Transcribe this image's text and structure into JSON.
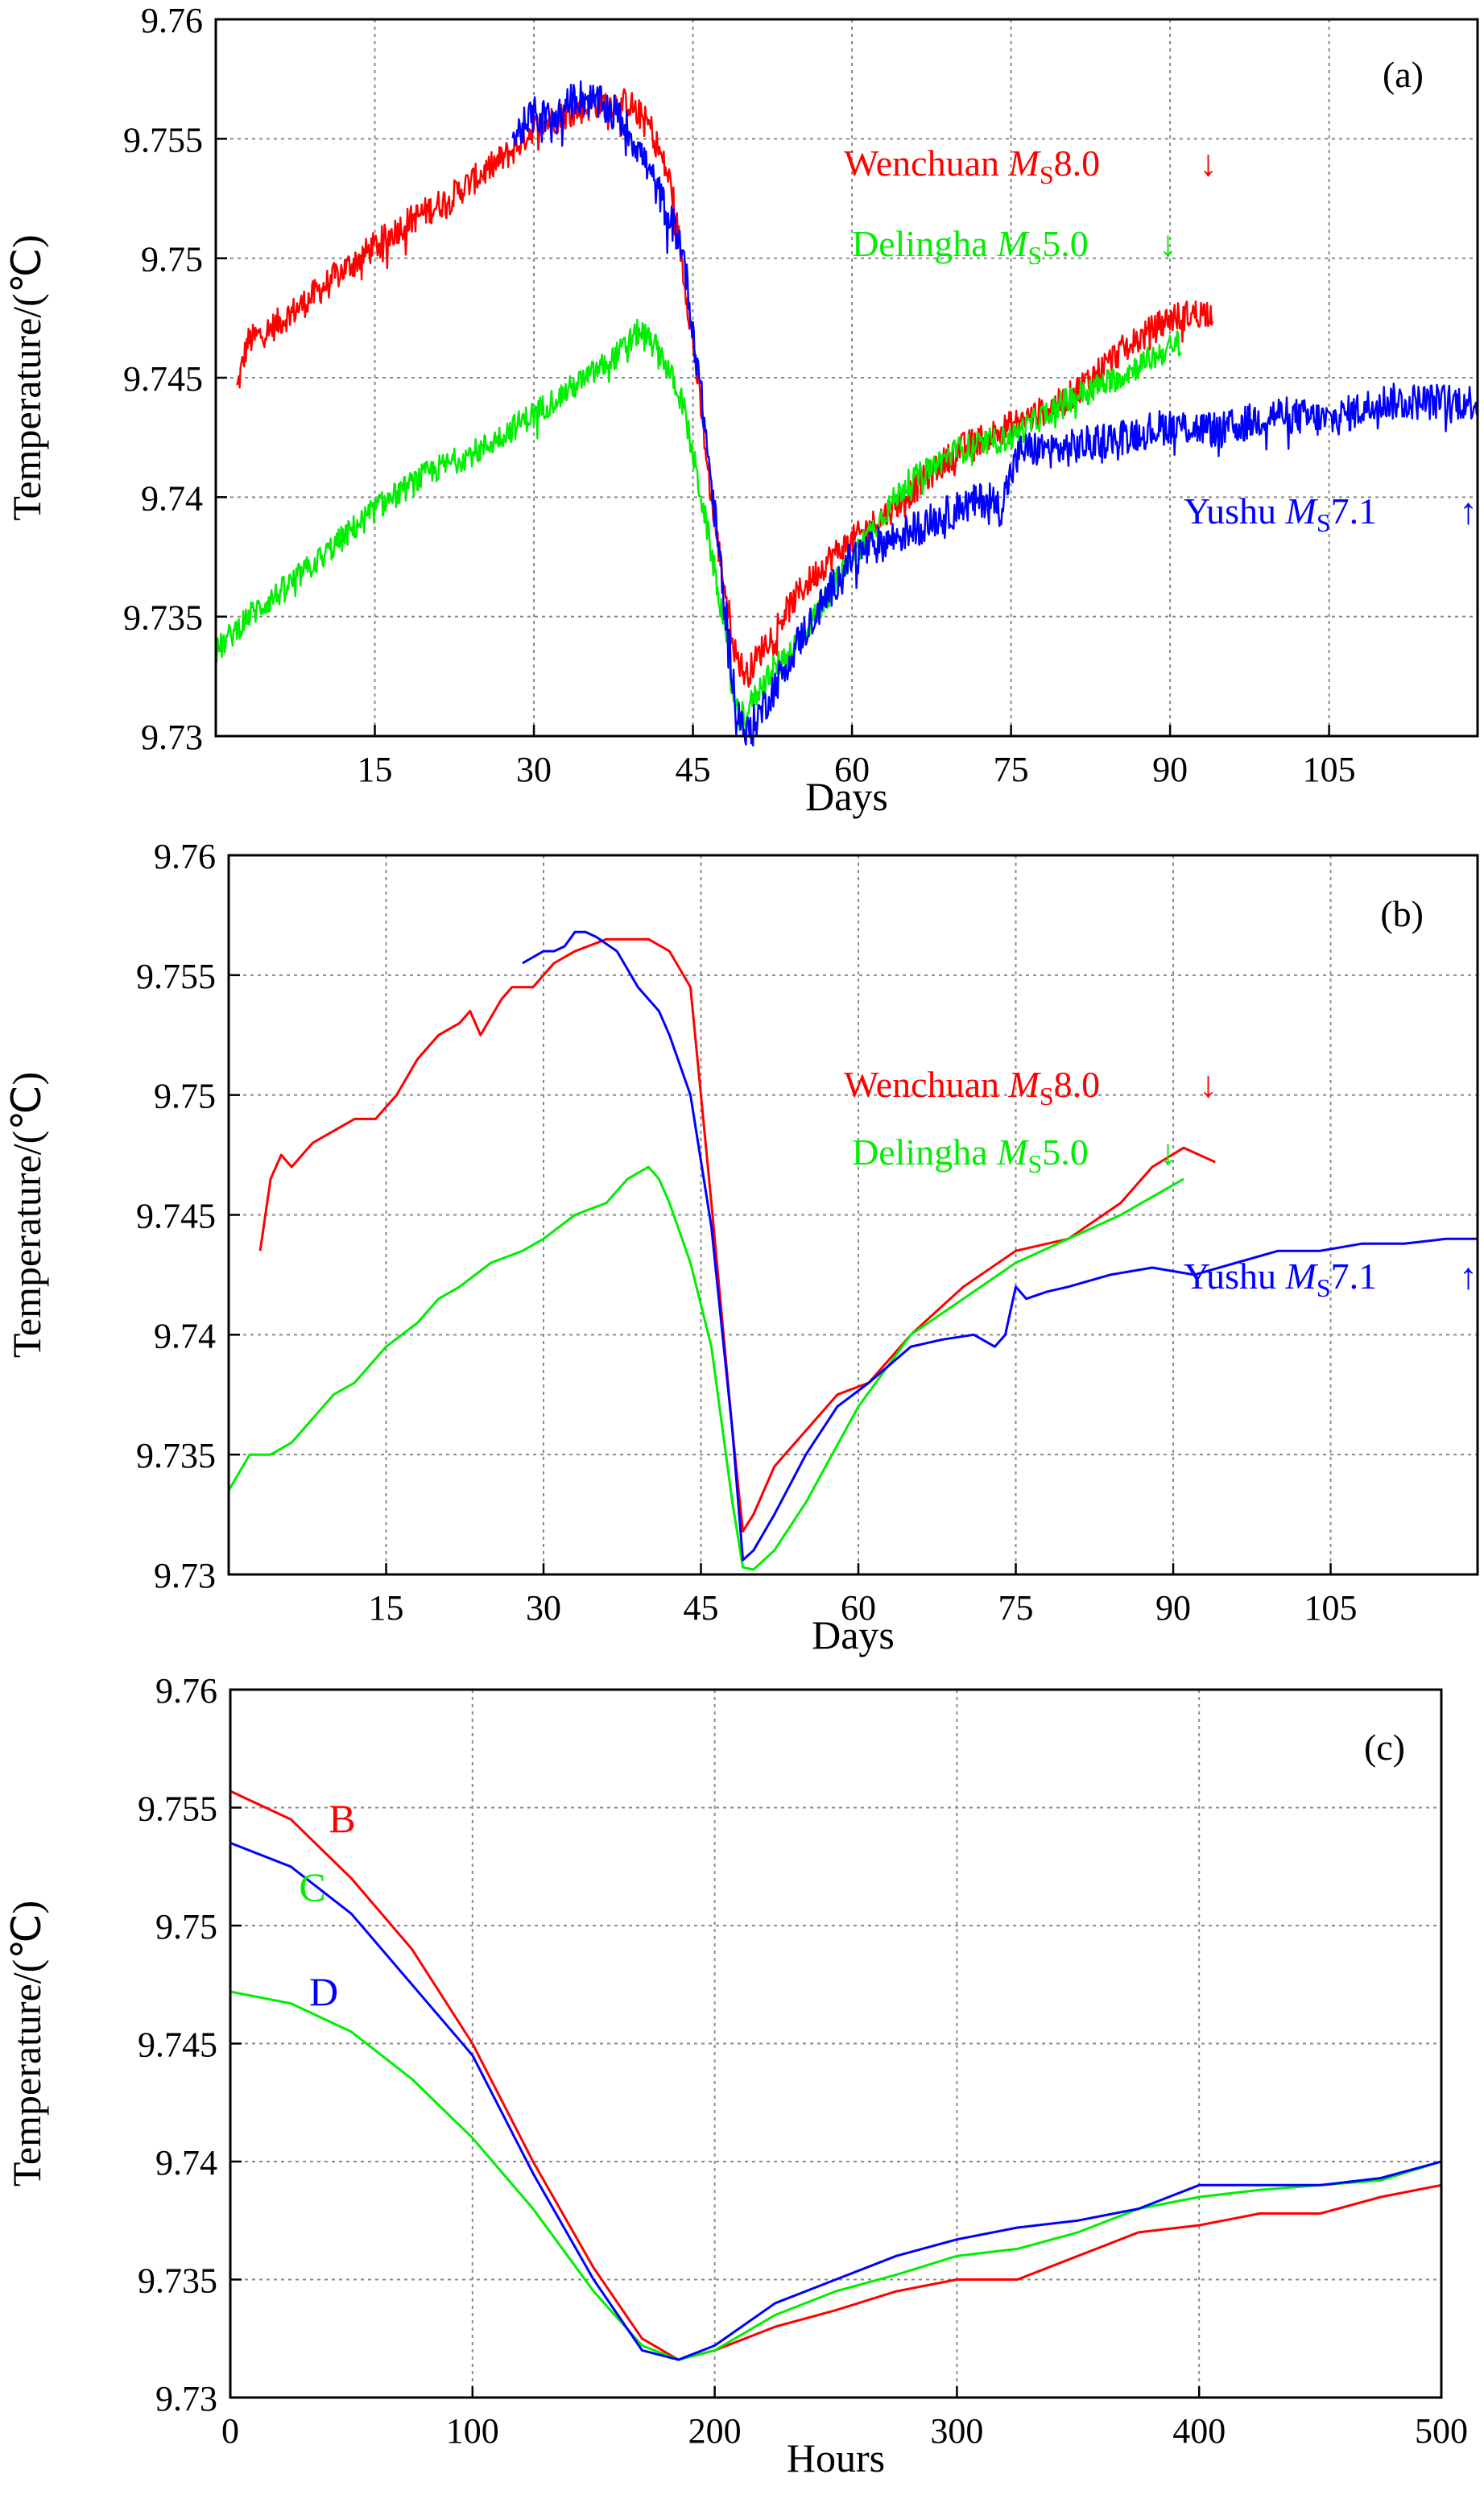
{
  "chart_data": [
    {
      "type": "line",
      "panel_label": "(a)",
      "xlabel": "Days",
      "ylabel": "Temperature/(℃)",
      "xlim": [
        0,
        119
      ],
      "ylim": [
        9.73,
        9.76
      ],
      "xticks": [
        15,
        30,
        45,
        60,
        75,
        90,
        105
      ],
      "xtick_labels": [
        "15",
        "30",
        "45",
        "60",
        "75",
        "90",
        "105"
      ],
      "yticks": [
        9.73,
        9.735,
        9.74,
        9.745,
        9.75,
        9.755,
        9.76
      ],
      "ytick_labels": [
        "9.73",
        "9.735",
        "9.74",
        "9.745",
        "9.75",
        "9.755",
        "9.76"
      ],
      "grid": true,
      "noisy": true,
      "annotations": [
        {
          "text": "Wenchuan ",
          "m": "M",
          "sub": "S",
          "mag": "8.0",
          "arrow": "↓",
          "color": "#ff0000"
        },
        {
          "text": "Delingha ",
          "m": "M",
          "sub": "S",
          "mag": "5.0",
          "arrow": "↓",
          "color": "#00ee00"
        },
        {
          "text": "Yushu ",
          "m": "M",
          "sub": "S",
          "mag": "7.1",
          "arrow": "↑",
          "color": "#0000ff"
        }
      ],
      "series": [
        {
          "color": "#ff0000",
          "noise": 0.0009,
          "x": [
            2,
            3,
            5,
            8,
            12,
            15,
            18,
            22,
            25,
            28,
            30,
            33,
            36,
            39,
            41,
            43,
            45,
            47,
            49,
            50,
            52,
            55,
            58,
            61,
            65,
            70,
            75,
            80,
            85,
            90,
            94
          ],
          "y": [
            9.7445,
            9.7465,
            9.747,
            9.748,
            9.7495,
            9.7505,
            9.7515,
            9.7525,
            9.7535,
            9.7545,
            9.7555,
            9.756,
            9.7565,
            9.7565,
            9.7555,
            9.753,
            9.7465,
            9.739,
            9.7335,
            9.7325,
            9.734,
            9.736,
            9.7375,
            9.7385,
            9.74,
            9.742,
            9.743,
            9.744,
            9.746,
            9.7475,
            9.7478
          ]
        },
        {
          "color": "#00ee00",
          "noise": 0.0008,
          "x": [
            0,
            3,
            6,
            10,
            15,
            20,
            25,
            30,
            35,
            38,
            40,
            41,
            42,
            44,
            46,
            48,
            49,
            50,
            52,
            55,
            60,
            65,
            70,
            75,
            80,
            85,
            91
          ],
          "y": [
            9.7335,
            9.735,
            9.736,
            9.7375,
            9.7395,
            9.741,
            9.742,
            9.7435,
            9.745,
            9.746,
            9.747,
            9.7465,
            9.746,
            9.744,
            9.7395,
            9.7345,
            9.731,
            9.731,
            9.7325,
            9.734,
            9.7375,
            9.7405,
            9.742,
            9.7425,
            9.744,
            9.745,
            9.7465
          ]
        },
        {
          "color": "#0000ff",
          "noise": 0.0011,
          "x": [
            28,
            30,
            32,
            34,
            36,
            38,
            40,
            42,
            44,
            46,
            48,
            49,
            50,
            52,
            55,
            60,
            65,
            70,
            73,
            74,
            75,
            76,
            80,
            85,
            90,
            95,
            100,
            105,
            110,
            119
          ],
          "y": [
            9.755,
            9.756,
            9.7558,
            9.7568,
            9.7565,
            9.756,
            9.7545,
            9.7525,
            9.7505,
            9.7435,
            9.7355,
            9.7315,
            9.73,
            9.7315,
            9.734,
            9.7375,
            9.7385,
            9.7395,
            9.74,
            9.7395,
            9.741,
            9.742,
            9.742,
            9.7425,
            9.743,
            9.7428,
            9.7435,
            9.7432,
            9.744,
            9.744
          ]
        }
      ]
    },
    {
      "type": "line",
      "panel_label": "(b)",
      "xlabel": "Days",
      "ylabel": "Temperature/(℃)",
      "xlim": [
        0,
        119
      ],
      "ylim": [
        9.73,
        9.76
      ],
      "xticks": [
        15,
        30,
        45,
        60,
        75,
        90,
        105
      ],
      "xtick_labels": [
        "15",
        "30",
        "45",
        "60",
        "75",
        "90",
        "105"
      ],
      "yticks": [
        9.73,
        9.735,
        9.74,
        9.745,
        9.75,
        9.755,
        9.76
      ],
      "ytick_labels": [
        "9.73",
        "9.735",
        "9.74",
        "9.745",
        "9.75",
        "9.755",
        "9.76"
      ],
      "grid": true,
      "noisy": false,
      "annotations": [
        {
          "text": "Wenchuan ",
          "m": "M",
          "sub": "S",
          "mag": "8.0",
          "arrow": "↓",
          "color": "#ff0000"
        },
        {
          "text": "Delingha ",
          "m": "M",
          "sub": "S",
          "mag": "5.0",
          "arrow": "↓",
          "color": "#00ee00"
        },
        {
          "text": "Yushu ",
          "m": "M",
          "sub": "S",
          "mag": "7.1",
          "arrow": "↑",
          "color": "#0000ff"
        }
      ],
      "series": [
        {
          "color": "#ff0000",
          "noise": 0,
          "x": [
            3,
            4,
            5,
            6,
            8,
            10,
            12,
            14,
            16,
            18,
            20,
            22,
            23,
            24,
            26,
            27,
            29,
            31,
            33,
            36,
            38,
            40,
            42,
            44,
            46,
            48,
            49,
            50,
            52,
            55,
            58,
            61,
            65,
            70,
            75,
            80,
            85,
            88,
            91,
            94
          ],
          "y": [
            9.7435,
            9.7465,
            9.7475,
            9.747,
            9.748,
            9.7485,
            9.749,
            9.749,
            9.75,
            9.7515,
            9.7525,
            9.753,
            9.7535,
            9.7525,
            9.754,
            9.7545,
            9.7545,
            9.7555,
            9.756,
            9.7565,
            9.7565,
            9.7565,
            9.756,
            9.7545,
            9.7455,
            9.736,
            9.7318,
            9.7325,
            9.7345,
            9.736,
            9.7375,
            9.738,
            9.74,
            9.742,
            9.7435,
            9.744,
            9.7455,
            9.747,
            9.7478,
            9.7472
          ]
        },
        {
          "color": "#00ee00",
          "noise": 0,
          "x": [
            0,
            2,
            4,
            6,
            8,
            10,
            12,
            15,
            18,
            20,
            22,
            25,
            28,
            30,
            33,
            36,
            38,
            40,
            41,
            42,
            44,
            46,
            48,
            49,
            50,
            52,
            55,
            60,
            65,
            70,
            75,
            80,
            85,
            91
          ],
          "y": [
            9.7335,
            9.735,
            9.735,
            9.7355,
            9.7365,
            9.7375,
            9.738,
            9.7395,
            9.7405,
            9.7415,
            9.742,
            9.743,
            9.7435,
            9.744,
            9.745,
            9.7455,
            9.7465,
            9.747,
            9.7465,
            9.7455,
            9.743,
            9.7395,
            9.733,
            9.7303,
            9.7302,
            9.731,
            9.733,
            9.737,
            9.74,
            9.7415,
            9.743,
            9.744,
            9.745,
            9.7465
          ]
        },
        {
          "color": "#0000ff",
          "noise": 0,
          "x": [
            28,
            30,
            31,
            32,
            33,
            34,
            35,
            37,
            39,
            41,
            42,
            44,
            46,
            48,
            49,
            50,
            52,
            55,
            58,
            61,
            65,
            68,
            71,
            73,
            74,
            75,
            76,
            78,
            80,
            84,
            88,
            92,
            96,
            100,
            104,
            108,
            112,
            116,
            119
          ],
          "y": [
            9.7555,
            9.756,
            9.756,
            9.7562,
            9.7568,
            9.7568,
            9.7566,
            9.756,
            9.7545,
            9.7535,
            9.7525,
            9.75,
            9.7445,
            9.736,
            9.7306,
            9.731,
            9.7325,
            9.735,
            9.737,
            9.738,
            9.7395,
            9.7398,
            9.74,
            9.7395,
            9.74,
            9.742,
            9.7415,
            9.7418,
            9.742,
            9.7425,
            9.7428,
            9.7425,
            9.743,
            9.7435,
            9.7435,
            9.7438,
            9.7438,
            9.744,
            9.744
          ]
        }
      ]
    },
    {
      "type": "line",
      "panel_label": "(c)",
      "xlabel": "Hours",
      "ylabel": "Temperature/(℃)",
      "xlim": [
        0,
        500
      ],
      "ylim": [
        9.73,
        9.76
      ],
      "xticks": [
        0,
        100,
        200,
        300,
        400,
        500
      ],
      "xtick_labels": [
        "0",
        "100",
        "200",
        "300",
        "400",
        "500"
      ],
      "yticks": [
        9.73,
        9.735,
        9.74,
        9.745,
        9.75,
        9.755,
        9.76
      ],
      "ytick_labels": [
        "9.73",
        "9.735",
        "9.74",
        "9.745",
        "9.75",
        "9.755",
        "9.76"
      ],
      "grid": true,
      "noisy": false,
      "series": [
        {
          "name": "B",
          "color": "#ff0000",
          "noise": 0,
          "x": [
            0,
            25,
            50,
            75,
            100,
            125,
            150,
            170,
            185,
            200,
            225,
            250,
            275,
            300,
            325,
            350,
            375,
            400,
            425,
            450,
            475,
            500
          ],
          "y": [
            9.7557,
            9.7545,
            9.752,
            9.749,
            9.745,
            9.74,
            9.7355,
            9.7325,
            9.7316,
            9.732,
            9.733,
            9.7337,
            9.7345,
            9.735,
            9.735,
            9.736,
            9.737,
            9.7373,
            9.7378,
            9.7378,
            9.7385,
            9.739
          ]
        },
        {
          "name": "C",
          "color": "#00ee00",
          "noise": 0,
          "x": [
            0,
            25,
            50,
            75,
            100,
            125,
            150,
            170,
            185,
            200,
            225,
            250,
            275,
            300,
            325,
            350,
            375,
            400,
            425,
            450,
            475,
            500
          ],
          "y": [
            9.7472,
            9.7467,
            9.7455,
            9.7435,
            9.741,
            9.738,
            9.7345,
            9.7322,
            9.7316,
            9.732,
            9.7335,
            9.7345,
            9.7352,
            9.736,
            9.7363,
            9.737,
            9.738,
            9.7385,
            9.7388,
            9.739,
            9.7392,
            9.74
          ]
        },
        {
          "name": "D",
          "color": "#0000ff",
          "noise": 0,
          "x": [
            0,
            25,
            50,
            75,
            100,
            125,
            150,
            170,
            185,
            200,
            225,
            250,
            275,
            300,
            325,
            350,
            375,
            400,
            425,
            450,
            475,
            500
          ],
          "y": [
            9.7535,
            9.7525,
            9.7505,
            9.7475,
            9.7445,
            9.7395,
            9.735,
            9.732,
            9.7316,
            9.7322,
            9.734,
            9.735,
            9.736,
            9.7367,
            9.7372,
            9.7375,
            9.738,
            9.739,
            9.739,
            9.739,
            9.7393,
            9.74
          ]
        }
      ]
    }
  ]
}
